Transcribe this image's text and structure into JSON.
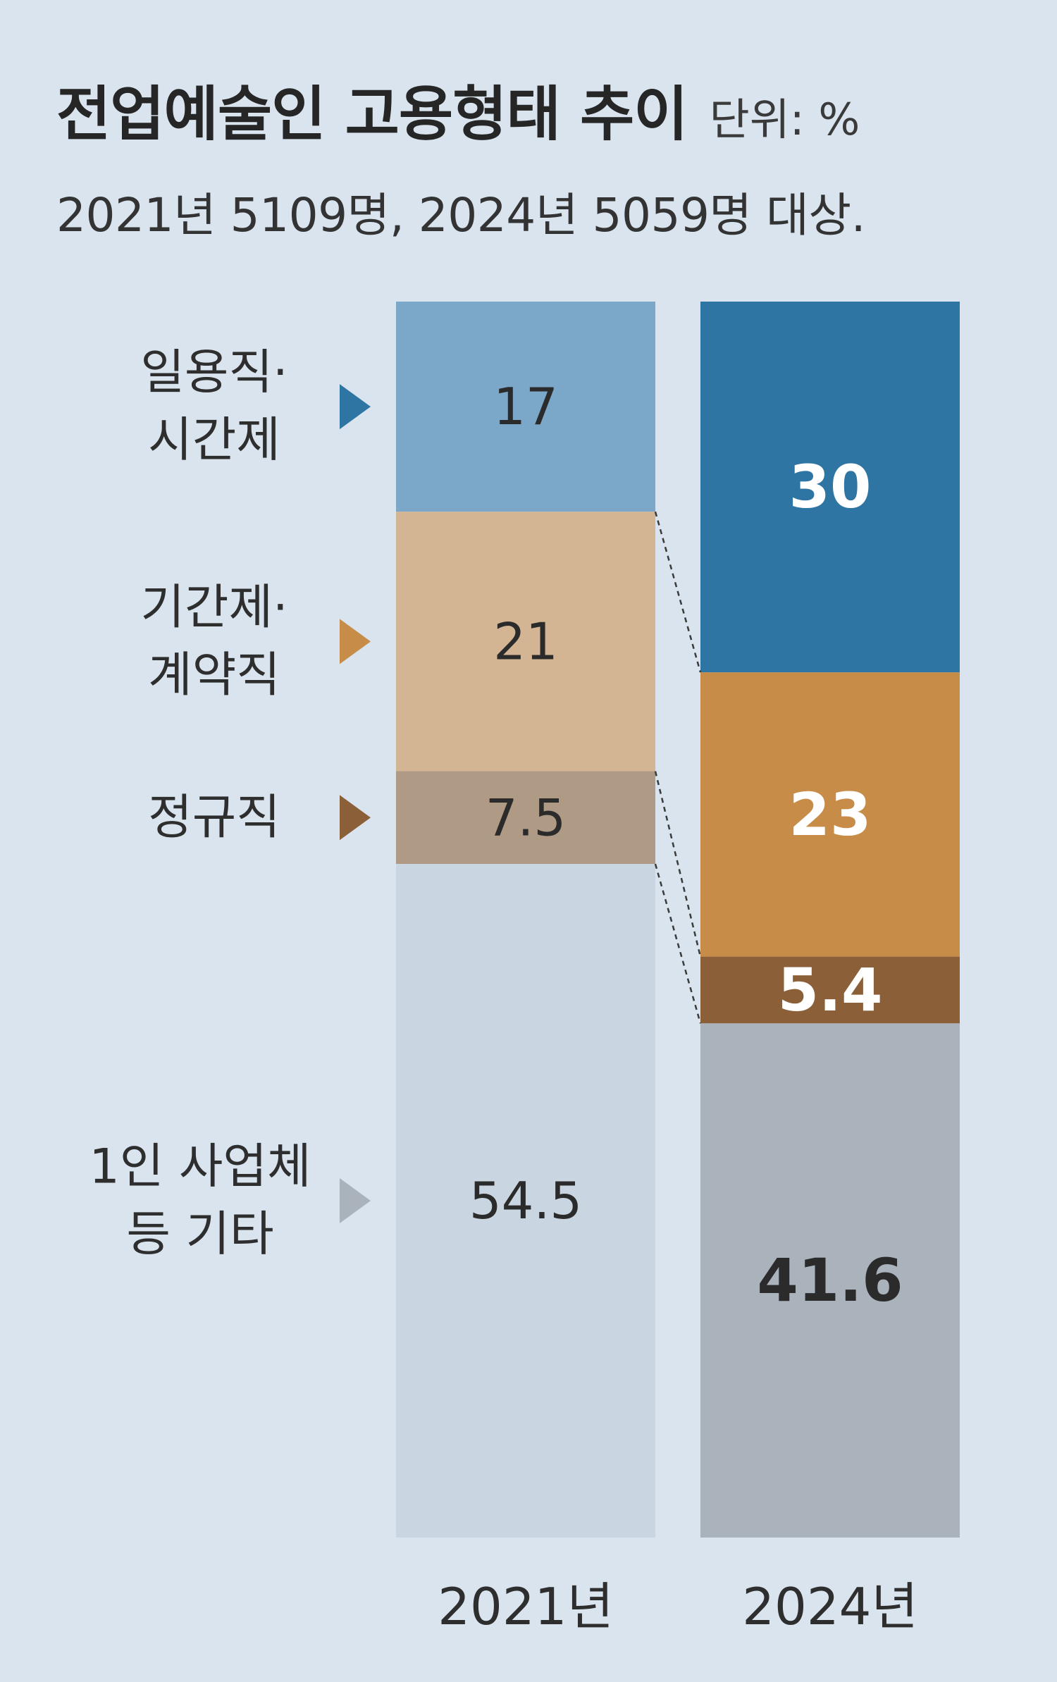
{
  "header": {
    "title": "전업예술인 고용형태 추이",
    "unit": "단위: %",
    "subtitle": "2021년 5109명, 2024년 5059명 대상."
  },
  "chart_data": {
    "type": "bar",
    "stacked": true,
    "percent_stacked": true,
    "categories": [
      "2021년",
      "2024년"
    ],
    "ylim": [
      0,
      100
    ],
    "series": [
      {
        "name": "일용직·시간제",
        "label_lines": [
          "일용직·",
          "시간제"
        ],
        "values": [
          17,
          30
        ],
        "colors": [
          "#7ba7c9",
          "#2f75a3"
        ],
        "label_colors": [
          "#2b2b2b",
          "#ffffff"
        ],
        "marker_color": "#2f75a3"
      },
      {
        "name": "기간제·계약직",
        "label_lines": [
          "기간제·",
          "계약직"
        ],
        "values": [
          21,
          23
        ],
        "colors": [
          "#d3b594",
          "#c68c48"
        ],
        "label_colors": [
          "#2b2b2b",
          "#ffffff"
        ],
        "marker_color": "#c68c48"
      },
      {
        "name": "정규직",
        "label_lines": [
          "정규직"
        ],
        "values": [
          7.5,
          5.4
        ],
        "colors": [
          "#af9a85",
          "#8b5f38"
        ],
        "label_colors": [
          "#2b2b2b",
          "#ffffff"
        ],
        "marker_color": "#8b5f38"
      },
      {
        "name": "1인 사업체 등 기타",
        "label_lines": [
          "1인 사업체",
          "등 기타"
        ],
        "values": [
          54.5,
          41.6
        ],
        "colors": [
          "#c9d5e0",
          "#aab2bc"
        ],
        "label_colors": [
          "#2b2b2b",
          "#2b2b2b"
        ],
        "marker_color": "#aab2bc"
      }
    ],
    "value_labels": [
      [
        "17",
        "30"
      ],
      [
        "21",
        "23"
      ],
      [
        "7.5",
        "5.4"
      ],
      [
        "54.5",
        "41.6"
      ]
    ],
    "connector_lines": "dashed"
  }
}
